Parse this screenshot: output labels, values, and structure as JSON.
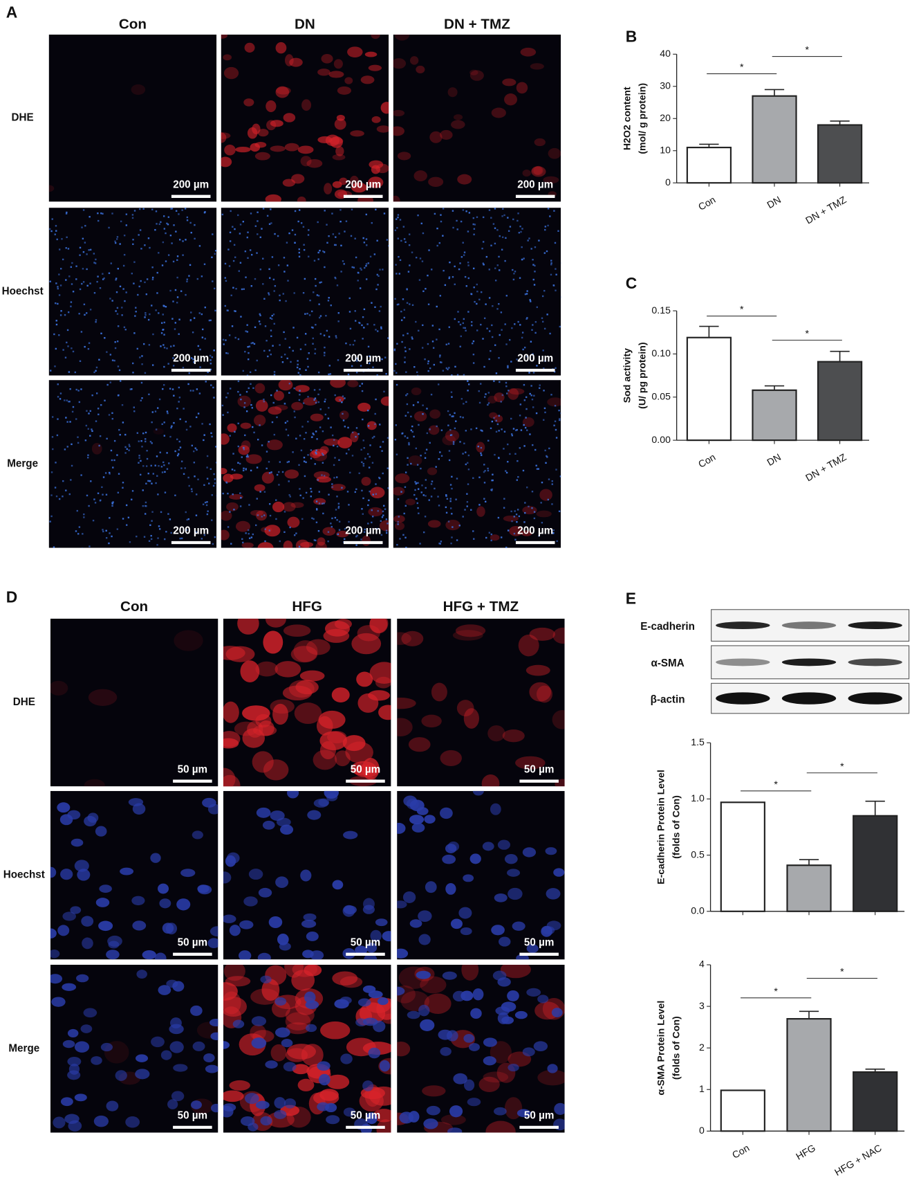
{
  "panel_A": {
    "label": "A",
    "columns": [
      "Con",
      "DN",
      "DN + TMZ"
    ],
    "rows": [
      "DHE",
      "Hoechst",
      "Merge"
    ],
    "scale_bar": "200 µm"
  },
  "panel_D": {
    "label": "D",
    "columns": [
      "Con",
      "HFG",
      "HFG + TMZ"
    ],
    "rows": [
      "DHE",
      "Hoechst",
      "Merge"
    ],
    "scale_bar": "50 µm"
  },
  "blot": {
    "label": "E",
    "proteins": [
      "E-cadherin",
      "α-SMA",
      "β-actin"
    ]
  },
  "chart_data": [
    {
      "type": "bar",
      "panel": "B",
      "y_label": [
        "H2O2 content",
        "(mol/ g protein)"
      ],
      "categories": [
        "Con",
        "DN",
        "DN + TMZ"
      ],
      "values": [
        11,
        27,
        18
      ],
      "errors": [
        1,
        2,
        1.2
      ],
      "colors": [
        "#ffffff",
        "#a7a9ac",
        "#4d4e50"
      ],
      "ylim": [
        0,
        40
      ],
      "yticks": [
        0,
        10,
        20,
        30,
        40
      ],
      "significance": [
        {
          "groups": [
            0,
            1
          ],
          "label": "*"
        },
        {
          "groups": [
            1,
            2
          ],
          "label": "*"
        }
      ]
    },
    {
      "type": "bar",
      "panel": "C",
      "y_label": [
        "Sod activity",
        "(U/ pg protein)"
      ],
      "categories": [
        "Con",
        "DN",
        "DN + TMZ"
      ],
      "values": [
        0.119,
        0.058,
        0.091
      ],
      "errors": [
        0.013,
        0.005,
        0.012
      ],
      "colors": [
        "#ffffff",
        "#a7a9ac",
        "#4d4e50"
      ],
      "ylim": [
        0,
        0.15
      ],
      "yticks": [
        {
          "value": 0,
          "label": "0.00"
        },
        0.05,
        {
          "value": 0.1,
          "label": "0.10"
        },
        0.15
      ],
      "significance": [
        {
          "groups": [
            0,
            1
          ],
          "label": "*"
        },
        {
          "groups": [
            1,
            2
          ],
          "label": "*"
        }
      ]
    },
    {
      "type": "bar",
      "y_label": [
        "E-cadherin Protein Level",
        "(folds of Con)"
      ],
      "categories": [
        null,
        null,
        null
      ],
      "values": [
        0.97,
        0.41,
        0.85
      ],
      "errors": [
        0,
        0.05,
        0.13
      ],
      "colors": [
        "#ffffff",
        "#a7a9ac",
        "#303134"
      ],
      "ylim": [
        0,
        1.5
      ],
      "yticks": [
        {
          "value": 0,
          "label": "0.0"
        },
        0.5,
        {
          "value": 1,
          "label": "1.0"
        },
        1.5
      ],
      "significance": [
        {
          "groups": [
            0,
            1
          ],
          "label": "*"
        },
        {
          "groups": [
            1,
            2
          ],
          "label": "*"
        }
      ]
    },
    {
      "type": "bar",
      "y_label": [
        "α-SMA Protein Level",
        "(folds of Con)"
      ],
      "categories": [
        "Con",
        "HFG",
        "HFG + NAC"
      ],
      "values": [
        0.98,
        2.7,
        1.42
      ],
      "errors": [
        0,
        0.18,
        0.07
      ],
      "colors": [
        "#ffffff",
        "#a7a9ac",
        "#303134"
      ],
      "ylim": [
        0,
        4
      ],
      "yticks": [
        0,
        1,
        2,
        3,
        4
      ],
      "significance": [
        {
          "groups": [
            0,
            1
          ],
          "label": "*"
        },
        {
          "groups": [
            1,
            2
          ],
          "label": "*"
        }
      ]
    }
  ]
}
